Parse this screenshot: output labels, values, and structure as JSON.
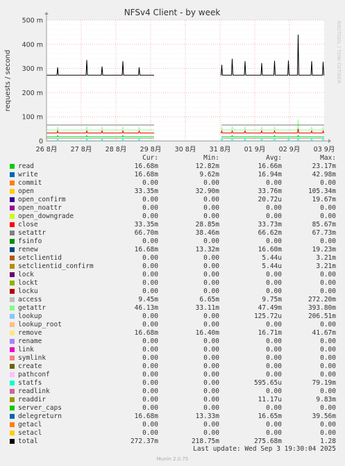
{
  "chart_data": {
    "type": "line",
    "title": "NFSv4 Client - by week",
    "ylabel": "requests / second",
    "y_ticks": [
      "0",
      "100 m",
      "200 m",
      "300 m",
      "400 m",
      "500 m"
    ],
    "ylim": [
      0,
      500
    ],
    "x_ticks": [
      "26 8月",
      "27 8月",
      "28 8月",
      "29 8月",
      "30 8月",
      "31 8月",
      "01 9月",
      "02 9月",
      "03 9月"
    ],
    "watermark": "RRDTOOL / TOBI OETIKER",
    "gap_days": [
      3.0,
      5.0
    ],
    "series": [
      {
        "name": "total",
        "base": 272,
        "spike_color": "#000000",
        "spikes": [
          [
            0.32,
            305
          ],
          [
            1.16,
            335
          ],
          [
            1.6,
            308
          ],
          [
            2.2,
            330
          ],
          [
            2.67,
            305
          ],
          [
            3.12,
            318
          ],
          [
            3.2,
            328
          ],
          [
            5.05,
            315
          ],
          [
            5.35,
            340
          ],
          [
            5.72,
            330
          ],
          [
            6.2,
            322
          ],
          [
            6.57,
            332
          ],
          [
            6.97,
            333
          ],
          [
            7.25,
            440
          ],
          [
            7.64,
            330
          ],
          [
            7.97,
            328
          ]
        ]
      },
      {
        "name": "getattr",
        "base": 46,
        "spike_color": "#99ff99",
        "spikes": [
          [
            0.32,
            58
          ],
          [
            1.16,
            60
          ],
          [
            1.6,
            57
          ],
          [
            2.2,
            58
          ],
          [
            2.67,
            56
          ],
          [
            3.12,
            57
          ],
          [
            5.05,
            56
          ],
          [
            5.35,
            60
          ],
          [
            5.72,
            58
          ],
          [
            6.2,
            58
          ],
          [
            6.57,
            57
          ],
          [
            7.25,
            90
          ],
          [
            7.64,
            58
          ],
          [
            7.97,
            57
          ]
        ]
      },
      {
        "name": "setattr",
        "base": 66,
        "spike_color": "#777777",
        "spikes": []
      },
      {
        "name": "close",
        "base": 33,
        "spike_color": "#ee0000",
        "spikes": [
          [
            0.32,
            42
          ],
          [
            1.16,
            42
          ],
          [
            1.6,
            42
          ],
          [
            2.2,
            42
          ],
          [
            2.67,
            42
          ],
          [
            3.12,
            42
          ],
          [
            5.05,
            42
          ],
          [
            5.35,
            42
          ],
          [
            5.72,
            42
          ],
          [
            6.2,
            42
          ],
          [
            6.57,
            42
          ],
          [
            7.25,
            50
          ],
          [
            7.64,
            42
          ],
          [
            7.97,
            42
          ]
        ]
      },
      {
        "name": "read",
        "base": 17,
        "spike_color": "#00cc00",
        "spikes": [
          [
            0.32,
            22
          ],
          [
            1.16,
            22
          ],
          [
            2.2,
            22
          ],
          [
            5.35,
            22
          ],
          [
            6.57,
            22
          ],
          [
            7.25,
            23
          ]
        ]
      },
      {
        "name": "access",
        "base": 10,
        "spike_color": "#aaaaaa",
        "spikes": []
      },
      {
        "name": "statfs",
        "base": 1,
        "spike_color": "#22ffdd",
        "spikes": [
          [
            0.32,
            12
          ],
          [
            1.16,
            12
          ],
          [
            1.6,
            12
          ],
          [
            2.2,
            12
          ],
          [
            2.67,
            12
          ],
          [
            3.12,
            12
          ],
          [
            5.05,
            12
          ],
          [
            5.35,
            12
          ],
          [
            5.72,
            12
          ],
          [
            6.2,
            12
          ],
          [
            6.57,
            12
          ],
          [
            6.97,
            12
          ],
          [
            7.25,
            14
          ],
          [
            7.64,
            12
          ],
          [
            7.97,
            12
          ]
        ]
      }
    ]
  },
  "legend": {
    "headers": [
      "Cur:",
      "Min:",
      "Avg:",
      "Max:"
    ],
    "rows": [
      {
        "name": "read",
        "color": "#00cc00",
        "cur": "16.68m",
        "min": "12.82m",
        "avg": "16.66m",
        "max": "23.17m"
      },
      {
        "name": "write",
        "color": "#0066b3",
        "cur": "16.68m",
        "min": "9.62m",
        "avg": "16.94m",
        "max": "42.98m"
      },
      {
        "name": "commit",
        "color": "#ff8000",
        "cur": "0.00",
        "min": "0.00",
        "avg": "0.00",
        "max": "0.00"
      },
      {
        "name": "open",
        "color": "#ffcc00",
        "cur": "33.35m",
        "min": "32.90m",
        "avg": "33.76m",
        "max": "105.34m"
      },
      {
        "name": "open_confirm",
        "color": "#330099",
        "cur": "0.00",
        "min": "0.00",
        "avg": "20.72u",
        "max": "19.67m"
      },
      {
        "name": "open_noattr",
        "color": "#990099",
        "cur": "0.00",
        "min": "0.00",
        "avg": "0.00",
        "max": "0.00"
      },
      {
        "name": "open_downgrade",
        "color": "#ccff00",
        "cur": "0.00",
        "min": "0.00",
        "avg": "0.00",
        "max": "0.00"
      },
      {
        "name": "close",
        "color": "#ff0000",
        "cur": "33.35m",
        "min": "28.85m",
        "avg": "33.73m",
        "max": "85.67m"
      },
      {
        "name": "setattr",
        "color": "#808080",
        "cur": "66.70m",
        "min": "38.46m",
        "avg": "66.62m",
        "max": "67.73m"
      },
      {
        "name": "fsinfo",
        "color": "#008f00",
        "cur": "0.00",
        "min": "0.00",
        "avg": "0.00",
        "max": "0.00"
      },
      {
        "name": "renew",
        "color": "#00487d",
        "cur": "16.68m",
        "min": "13.32m",
        "avg": "16.60m",
        "max": "19.23m"
      },
      {
        "name": "setclientid",
        "color": "#b35a00",
        "cur": "0.00",
        "min": "0.00",
        "avg": "5.44u",
        "max": "3.21m"
      },
      {
        "name": "setclientid_confirm",
        "color": "#b38f00",
        "cur": "0.00",
        "min": "0.00",
        "avg": "5.44u",
        "max": "3.21m"
      },
      {
        "name": "lock",
        "color": "#6b006b",
        "cur": "0.00",
        "min": "0.00",
        "avg": "0.00",
        "max": "0.00"
      },
      {
        "name": "lockt",
        "color": "#8fb300",
        "cur": "0.00",
        "min": "0.00",
        "avg": "0.00",
        "max": "0.00"
      },
      {
        "name": "locku",
        "color": "#b30000",
        "cur": "0.00",
        "min": "0.00",
        "avg": "0.00",
        "max": "0.00"
      },
      {
        "name": "access",
        "color": "#bebebe",
        "cur": "9.45m",
        "min": "6.65m",
        "avg": "9.75m",
        "max": "272.20m"
      },
      {
        "name": "getattr",
        "color": "#80ff80",
        "cur": "46.13m",
        "min": "33.11m",
        "avg": "47.49m",
        "max": "393.80m"
      },
      {
        "name": "lookup",
        "color": "#80c9ff",
        "cur": "0.00",
        "min": "0.00",
        "avg": "125.72u",
        "max": "206.51m"
      },
      {
        "name": "lookup_root",
        "color": "#ffc080",
        "cur": "0.00",
        "min": "0.00",
        "avg": "0.00",
        "max": "0.00"
      },
      {
        "name": "remove",
        "color": "#ffe680",
        "cur": "16.68m",
        "min": "16.40m",
        "avg": "16.71m",
        "max": "41.67m"
      },
      {
        "name": "rename",
        "color": "#aa80ff",
        "cur": "0.00",
        "min": "0.00",
        "avg": "0.00",
        "max": "0.00"
      },
      {
        "name": "link",
        "color": "#ee00cc",
        "cur": "0.00",
        "min": "0.00",
        "avg": "0.00",
        "max": "0.00"
      },
      {
        "name": "symlink",
        "color": "#ff8080",
        "cur": "0.00",
        "min": "0.00",
        "avg": "0.00",
        "max": "0.00"
      },
      {
        "name": "create",
        "color": "#666600",
        "cur": "0.00",
        "min": "0.00",
        "avg": "0.00",
        "max": "0.00"
      },
      {
        "name": "pathconf",
        "color": "#ffbfff",
        "cur": "0.00",
        "min": "0.00",
        "avg": "0.00",
        "max": "0.00"
      },
      {
        "name": "statfs",
        "color": "#00ffcc",
        "cur": "0.00",
        "min": "0.00",
        "avg": "595.65u",
        "max": "79.19m"
      },
      {
        "name": "readlink",
        "color": "#cc6699",
        "cur": "0.00",
        "min": "0.00",
        "avg": "0.00",
        "max": "0.00"
      },
      {
        "name": "readdir",
        "color": "#999900",
        "cur": "0.00",
        "min": "0.00",
        "avg": "11.17u",
        "max": "9.83m"
      },
      {
        "name": "server_caps",
        "color": "#00cc00",
        "cur": "0.00",
        "min": "0.00",
        "avg": "0.00",
        "max": "0.00"
      },
      {
        "name": "delegreturn",
        "color": "#0066b3",
        "cur": "16.68m",
        "min": "13.33m",
        "avg": "16.65m",
        "max": "39.56m"
      },
      {
        "name": "getacl",
        "color": "#ff8000",
        "cur": "0.00",
        "min": "0.00",
        "avg": "0.00",
        "max": "0.00"
      },
      {
        "name": "setacl",
        "color": "#ffcc00",
        "cur": "0.00",
        "min": "0.00",
        "avg": "0.00",
        "max": "0.00"
      },
      {
        "name": "total",
        "color": "#000000",
        "cur": "272.37m",
        "min": "218.75m",
        "avg": "275.68m",
        "max": "1.28"
      }
    ]
  },
  "last_update": "Last update: Wed Sep  3 19:30:04 2025",
  "footer": "Munin 2.0.75"
}
